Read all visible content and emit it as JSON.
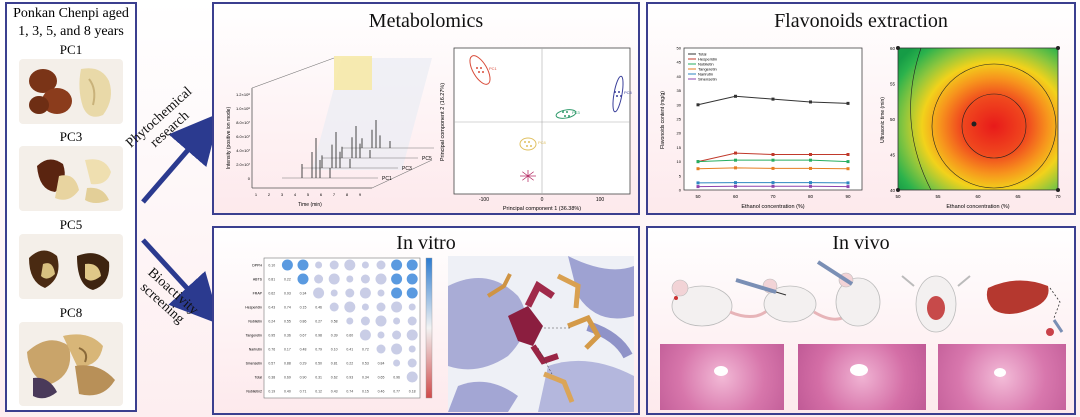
{
  "left": {
    "title_line1": "Ponkan Chenpi aged",
    "title_line2": "1, 3, 5, and 8 years",
    "samples": [
      "PC1",
      "PC3",
      "PC5",
      "PC8"
    ]
  },
  "arrows": {
    "top_label_line1": "Phytochemical",
    "top_label_line2": "research",
    "bottom_label_line1": "Bioactivity",
    "bottom_label_line2": "screening"
  },
  "metabolomics": {
    "title": "Metabolomics",
    "chromatogram": {
      "ylabel": "Intensity (positive ion mode)",
      "xlabel": "Time (min)",
      "traces": [
        "PC8",
        "PC5",
        "PC3",
        "PC1"
      ],
      "yticks": [
        "1.2×10⁸",
        "1.0×10⁸",
        "8.0×10⁷",
        "6.0×10⁷",
        "4.0×10⁷",
        "2.0×10⁷",
        "0"
      ],
      "xticks": [
        "1",
        "2",
        "3",
        "4",
        "5",
        "6",
        "7",
        "8",
        "9"
      ]
    },
    "pca": {
      "xlabel": "Principal component 1 (36.38%)",
      "ylabel": "Principal component 2 (16.27%)",
      "xticks": [
        "-100",
        "0",
        "100"
      ],
      "groups": [
        {
          "name": "PC1",
          "color": "#d94c3a"
        },
        {
          "name": "PC3",
          "color": "#2f9a6b"
        },
        {
          "name": "PC5",
          "color": "#3a3f9a"
        },
        {
          "name": "PC8",
          "color": "#e0c060"
        }
      ]
    }
  },
  "flavonoids": {
    "title": "Flavonoids extraction",
    "line_chart": {
      "ylabel": "Flavonoids content (mg/g)",
      "xlabel": "Ethanol concentration (%)",
      "x": [
        50,
        60,
        70,
        80,
        90
      ],
      "yticks": [
        "0",
        "5",
        "10",
        "15",
        "20",
        "25",
        "30",
        "35",
        "40",
        "45",
        "50"
      ],
      "ylim": [
        0,
        50
      ],
      "series": [
        {
          "name": "Total",
          "color": "#333333",
          "values": [
            30,
            33,
            32,
            31,
            30.5
          ]
        },
        {
          "name": "Hesperidin",
          "color": "#c0392b",
          "values": [
            10,
            13,
            12.5,
            12.5,
            12.5
          ]
        },
        {
          "name": "Nobiletin",
          "color": "#27ae60",
          "values": [
            10,
            10.5,
            10.5,
            10.5,
            10
          ]
        },
        {
          "name": "Tangeretin",
          "color": "#e67e22",
          "values": [
            7.5,
            7.8,
            7.6,
            7.6,
            7.5
          ]
        },
        {
          "name": "Narirutin",
          "color": "#2e86c1",
          "values": [
            2.5,
            2.6,
            2.6,
            2.6,
            2.5
          ]
        },
        {
          "name": "Sinensetin",
          "color": "#8e44ad",
          "values": [
            1.2,
            1.3,
            1.3,
            1.3,
            1.2
          ]
        }
      ]
    },
    "heatmap": {
      "ylabel": "Ultrasonic time (min)",
      "xlabel": "Ethanol concentration (%)",
      "xticks": [
        "50",
        "55",
        "60",
        "65",
        "70"
      ],
      "yticks": [
        "40",
        "45",
        "50",
        "55",
        "60"
      ]
    }
  },
  "invitro": {
    "title": "In vitro",
    "matrix_rows": [
      "DPPH",
      "ABTS",
      "FRAP",
      "Hesperidin",
      "Nobiletin",
      "Tangeretin",
      "Narirutin",
      "Sinensetin",
      "Total",
      "Nobiletin2"
    ]
  },
  "invivo": {
    "title": "In vivo"
  },
  "colors": {
    "border": "#3b3f8f",
    "arrow": "#2b3a8f",
    "panel_tint": "#fde9ec"
  }
}
